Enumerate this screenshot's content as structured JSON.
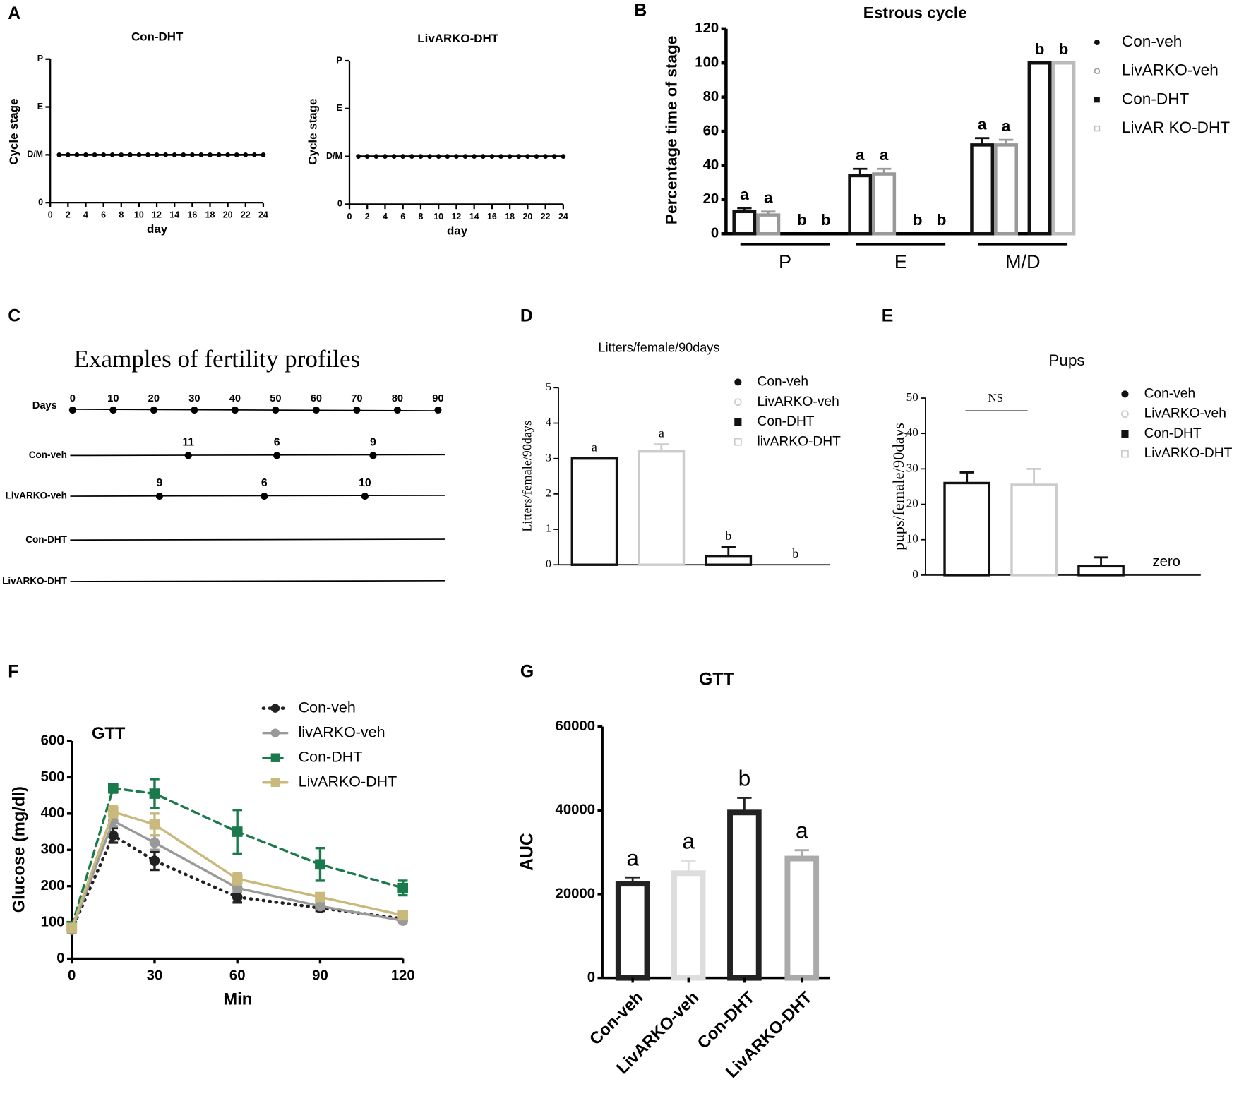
{
  "panel_labels": [
    "A",
    "B",
    "C",
    "D",
    "E",
    "F",
    "G"
  ],
  "chart_data": [
    {
      "type": "line",
      "title": "Con-DHT",
      "y_label": "Cycle stage",
      "x_label": "day",
      "x": [
        1,
        2,
        3,
        4,
        5,
        6,
        7,
        8,
        9,
        10,
        11,
        12,
        13,
        14,
        15,
        16,
        17,
        18,
        19,
        20,
        21,
        22,
        23,
        24
      ],
      "values": [
        1,
        1,
        1,
        1,
        1,
        1,
        1,
        1,
        1,
        1,
        1,
        1,
        1,
        1,
        1,
        1,
        1,
        1,
        1,
        1,
        1,
        1,
        1,
        1
      ],
      "color": "#000000",
      "xlim": [
        0,
        24
      ],
      "xticks": [
        0,
        2,
        4,
        6,
        8,
        10,
        12,
        14,
        16,
        18,
        20,
        22,
        24
      ],
      "ylim": [
        0,
        3
      ],
      "yticks": [
        0,
        {
          "value": 1,
          "label": "D/M"
        },
        {
          "value": 2,
          "label": "E"
        },
        {
          "value": 3,
          "label": "P"
        }
      ]
    },
    {
      "type": "line",
      "title": "LivARKO-DHT",
      "y_label": "Cycle stage",
      "x_label": "day",
      "x": [
        1,
        2,
        3,
        4,
        5,
        6,
        7,
        8,
        9,
        10,
        11,
        12,
        13,
        14,
        15,
        16,
        17,
        18,
        19,
        20,
        21,
        22,
        23,
        24
      ],
      "values": [
        1,
        1,
        1,
        1,
        1,
        1,
        1,
        1,
        1,
        1,
        1,
        1,
        1,
        1,
        1,
        1,
        1,
        1,
        1,
        1,
        1,
        1,
        1,
        1
      ],
      "color": "#000000",
      "xlim": [
        0,
        24
      ],
      "xticks": [
        0,
        2,
        4,
        6,
        8,
        10,
        12,
        14,
        16,
        18,
        20,
        22,
        24
      ],
      "ylim": [
        0,
        3
      ],
      "yticks": [
        0,
        {
          "value": 1,
          "label": "D/M"
        },
        {
          "value": 2,
          "label": "E"
        },
        {
          "value": 3,
          "label": "P"
        }
      ]
    },
    {
      "type": "bar",
      "title": "Estrous cycle",
      "y_label": "Percentage time of stage",
      "categories": [
        "P",
        "E",
        "M/D"
      ],
      "series": [
        {
          "name": "Con-veh",
          "color": "#111111",
          "marker": "circle",
          "open": false,
          "values": [
            13,
            34,
            52
          ],
          "errors": [
            2,
            4,
            4
          ],
          "labels": [
            "a",
            "a",
            "a"
          ]
        },
        {
          "name": "LivARKO-veh",
          "color": "#999999",
          "marker": "circle",
          "open": true,
          "values": [
            11,
            35,
            52
          ],
          "errors": [
            2,
            3,
            3
          ],
          "labels": [
            "a",
            "a",
            "a"
          ]
        },
        {
          "name": "Con-DHT",
          "color": "#111111",
          "marker": "square",
          "open": false,
          "values": [
            0,
            0,
            100
          ],
          "errors": [
            0,
            0,
            0
          ],
          "labels": [
            "b",
            "b",
            "b"
          ]
        },
        {
          "name": "LivAR KO-DHT",
          "color": "#bbbbbb",
          "marker": "square",
          "open": true,
          "values": [
            0,
            0,
            100
          ],
          "errors": [
            0,
            0,
            0
          ],
          "labels": [
            "b",
            "b",
            "b"
          ]
        }
      ],
      "ylim": [
        0,
        120
      ],
      "yticks": [
        0,
        20,
        40,
        60,
        80,
        100,
        120
      ],
      "legend": "right"
    },
    {
      "type": "timeline",
      "title": "Examples of fertility profiles",
      "axis_label": "Days",
      "xlim": [
        0,
        90
      ],
      "xticks": [
        0,
        10,
        20,
        30,
        40,
        50,
        60,
        70,
        80,
        90
      ],
      "rows": [
        {
          "name": "Con-veh",
          "events": [
            28.5,
            50.3,
            74
          ],
          "event_labels": [
            "11",
            "6",
            "9"
          ]
        },
        {
          "name": "LivARKO-veh",
          "events": [
            21.4,
            47.2,
            72
          ],
          "event_labels": [
            "9",
            "6",
            "10"
          ]
        },
        {
          "name": "Con-DHT",
          "events": [],
          "event_labels": []
        },
        {
          "name": "LivARKO-DHT",
          "events": [],
          "event_labels": []
        }
      ]
    },
    {
      "type": "bar",
      "title": "Litters/female/90days",
      "y_label": "Litters/female/90days",
      "categories": [
        null
      ],
      "series": [
        {
          "name": "Con-veh",
          "color": "#111111",
          "marker": "circle",
          "open": false,
          "values": [
            3
          ],
          "errors": [
            0
          ],
          "labels": [
            "a"
          ]
        },
        {
          "name": "LivARKO-veh",
          "color": "#cccccc",
          "marker": "circle",
          "open": true,
          "values": [
            3.2
          ],
          "errors": [
            0.2
          ],
          "labels": [
            "a"
          ]
        },
        {
          "name": "Con-DHT",
          "color": "#111111",
          "marker": "square",
          "open": false,
          "values": [
            0.25
          ],
          "errors": [
            0.25
          ],
          "labels": [
            "b"
          ]
        },
        {
          "name": "livARKO-DHT",
          "color": "#cccccc",
          "marker": "square",
          "open": true,
          "values": [
            0
          ],
          "errors": [
            0
          ],
          "labels": [
            "b"
          ]
        }
      ],
      "ylim": [
        0,
        5
      ],
      "yticks": [
        0,
        1,
        2,
        3,
        4,
        5
      ],
      "legend": "right"
    },
    {
      "type": "bar",
      "title": "Pups",
      "y_label": "pups/female/90days",
      "categories": [
        null
      ],
      "series": [
        {
          "name": "Con-veh",
          "color": "#111111",
          "marker": "circle",
          "open": false,
          "values": [
            26
          ],
          "errors": [
            3
          ]
        },
        {
          "name": "LivARKO-veh",
          "color": "#cccccc",
          "marker": "circle",
          "open": true,
          "values": [
            25.5
          ],
          "errors": [
            4.5
          ]
        },
        {
          "name": "Con-DHT",
          "color": "#111111",
          "marker": "square",
          "open": false,
          "values": [
            2.5
          ],
          "errors": [
            2.5
          ]
        },
        {
          "name": "LivARKO-DHT",
          "color": "#cccccc",
          "marker": "square",
          "open": true,
          "values": [
            0
          ],
          "errors": [
            0
          ]
        }
      ],
      "annotations": [
        "NS",
        "zero"
      ],
      "ylim": [
        0,
        50
      ],
      "yticks": [
        0,
        10,
        20,
        30,
        40,
        50
      ],
      "legend": "right"
    },
    {
      "type": "line",
      "title": "GTT",
      "y_label": "Glucose (mg/dl)",
      "x_label": "Min",
      "x": [
        0,
        15,
        30,
        60,
        90,
        120
      ],
      "series": [
        {
          "name": "Con-veh",
          "color": "#222222",
          "dash": "dotted",
          "marker": "circle",
          "values": [
            80,
            340,
            270,
            170,
            140,
            110
          ],
          "errors": [
            8,
            20,
            25,
            15,
            8,
            5
          ]
        },
        {
          "name": "livARKO-veh",
          "color": "#999999",
          "dash": "solid",
          "marker": "circle",
          "values": [
            80,
            380,
            320,
            195,
            145,
            105
          ],
          "errors": [
            8,
            15,
            20,
            10,
            8,
            5
          ]
        },
        {
          "name": "Con-DHT",
          "color": "#1b7a4b",
          "dash": "dashed",
          "marker": "square",
          "values": [
            90,
            470,
            455,
            350,
            260,
            195
          ],
          "errors": [
            8,
            12,
            40,
            60,
            45,
            20
          ]
        },
        {
          "name": "LivARKO-DHT",
          "color": "#c9b97c",
          "dash": "solid",
          "marker": "square",
          "values": [
            85,
            405,
            370,
            220,
            170,
            120
          ],
          "errors": [
            8,
            15,
            30,
            15,
            10,
            8
          ]
        }
      ],
      "xlim": [
        0,
        120
      ],
      "xticks": [
        0,
        30,
        60,
        90,
        120
      ],
      "ylim": [
        0,
        600
      ],
      "yticks": [
        0,
        100,
        200,
        300,
        400,
        500,
        600
      ],
      "legend": "top"
    },
    {
      "type": "bar",
      "title": "GTT",
      "y_label": "AUC",
      "categories": [
        "Con-veh",
        "LivARKO-veh",
        "Con-DHT",
        "LivARKO-DHT"
      ],
      "values": [
        22500,
        25000,
        39500,
        28500
      ],
      "errors": [
        1500,
        3000,
        3500,
        2000
      ],
      "labels": [
        "a",
        "a",
        "b",
        "a"
      ],
      "colors": [
        "#222222",
        "#dddddd",
        "#222222",
        "#aaaaaa"
      ],
      "ylim": [
        0,
        60000
      ],
      "yticks": [
        0,
        20000,
        40000,
        60000
      ]
    }
  ]
}
